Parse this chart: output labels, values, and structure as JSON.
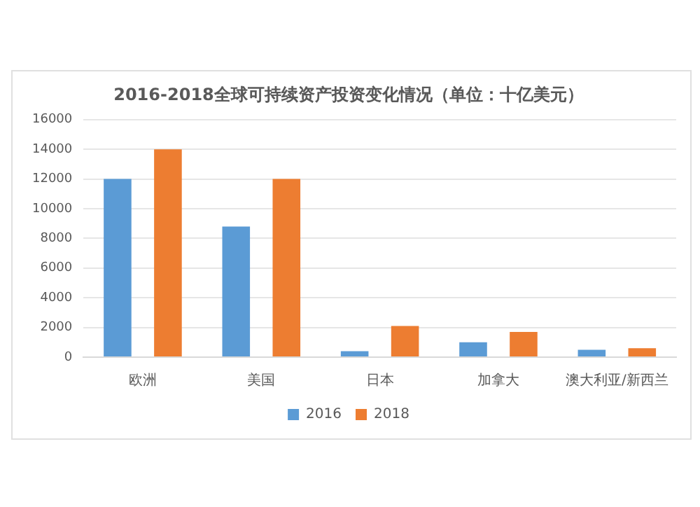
{
  "chart_data": {
    "type": "bar",
    "title": "2016-2018全球可持续资产投资变化情况（单位：十亿美元）",
    "categories": [
      "欧洲",
      "美国",
      "日本",
      "加拿大",
      "澳大利亚/新西兰"
    ],
    "series": [
      {
        "name": "2016",
        "color": "#5b9bd5",
        "values": [
          12000,
          8800,
          400,
          1000,
          500
        ]
      },
      {
        "name": "2018",
        "color": "#ed7d31",
        "values": [
          14000,
          12000,
          2100,
          1700,
          600
        ]
      }
    ],
    "ylim": [
      0,
      16000
    ],
    "yticks": [
      0,
      2000,
      4000,
      6000,
      8000,
      10000,
      12000,
      14000,
      16000
    ],
    "grid": "y",
    "legend": "bottom"
  }
}
